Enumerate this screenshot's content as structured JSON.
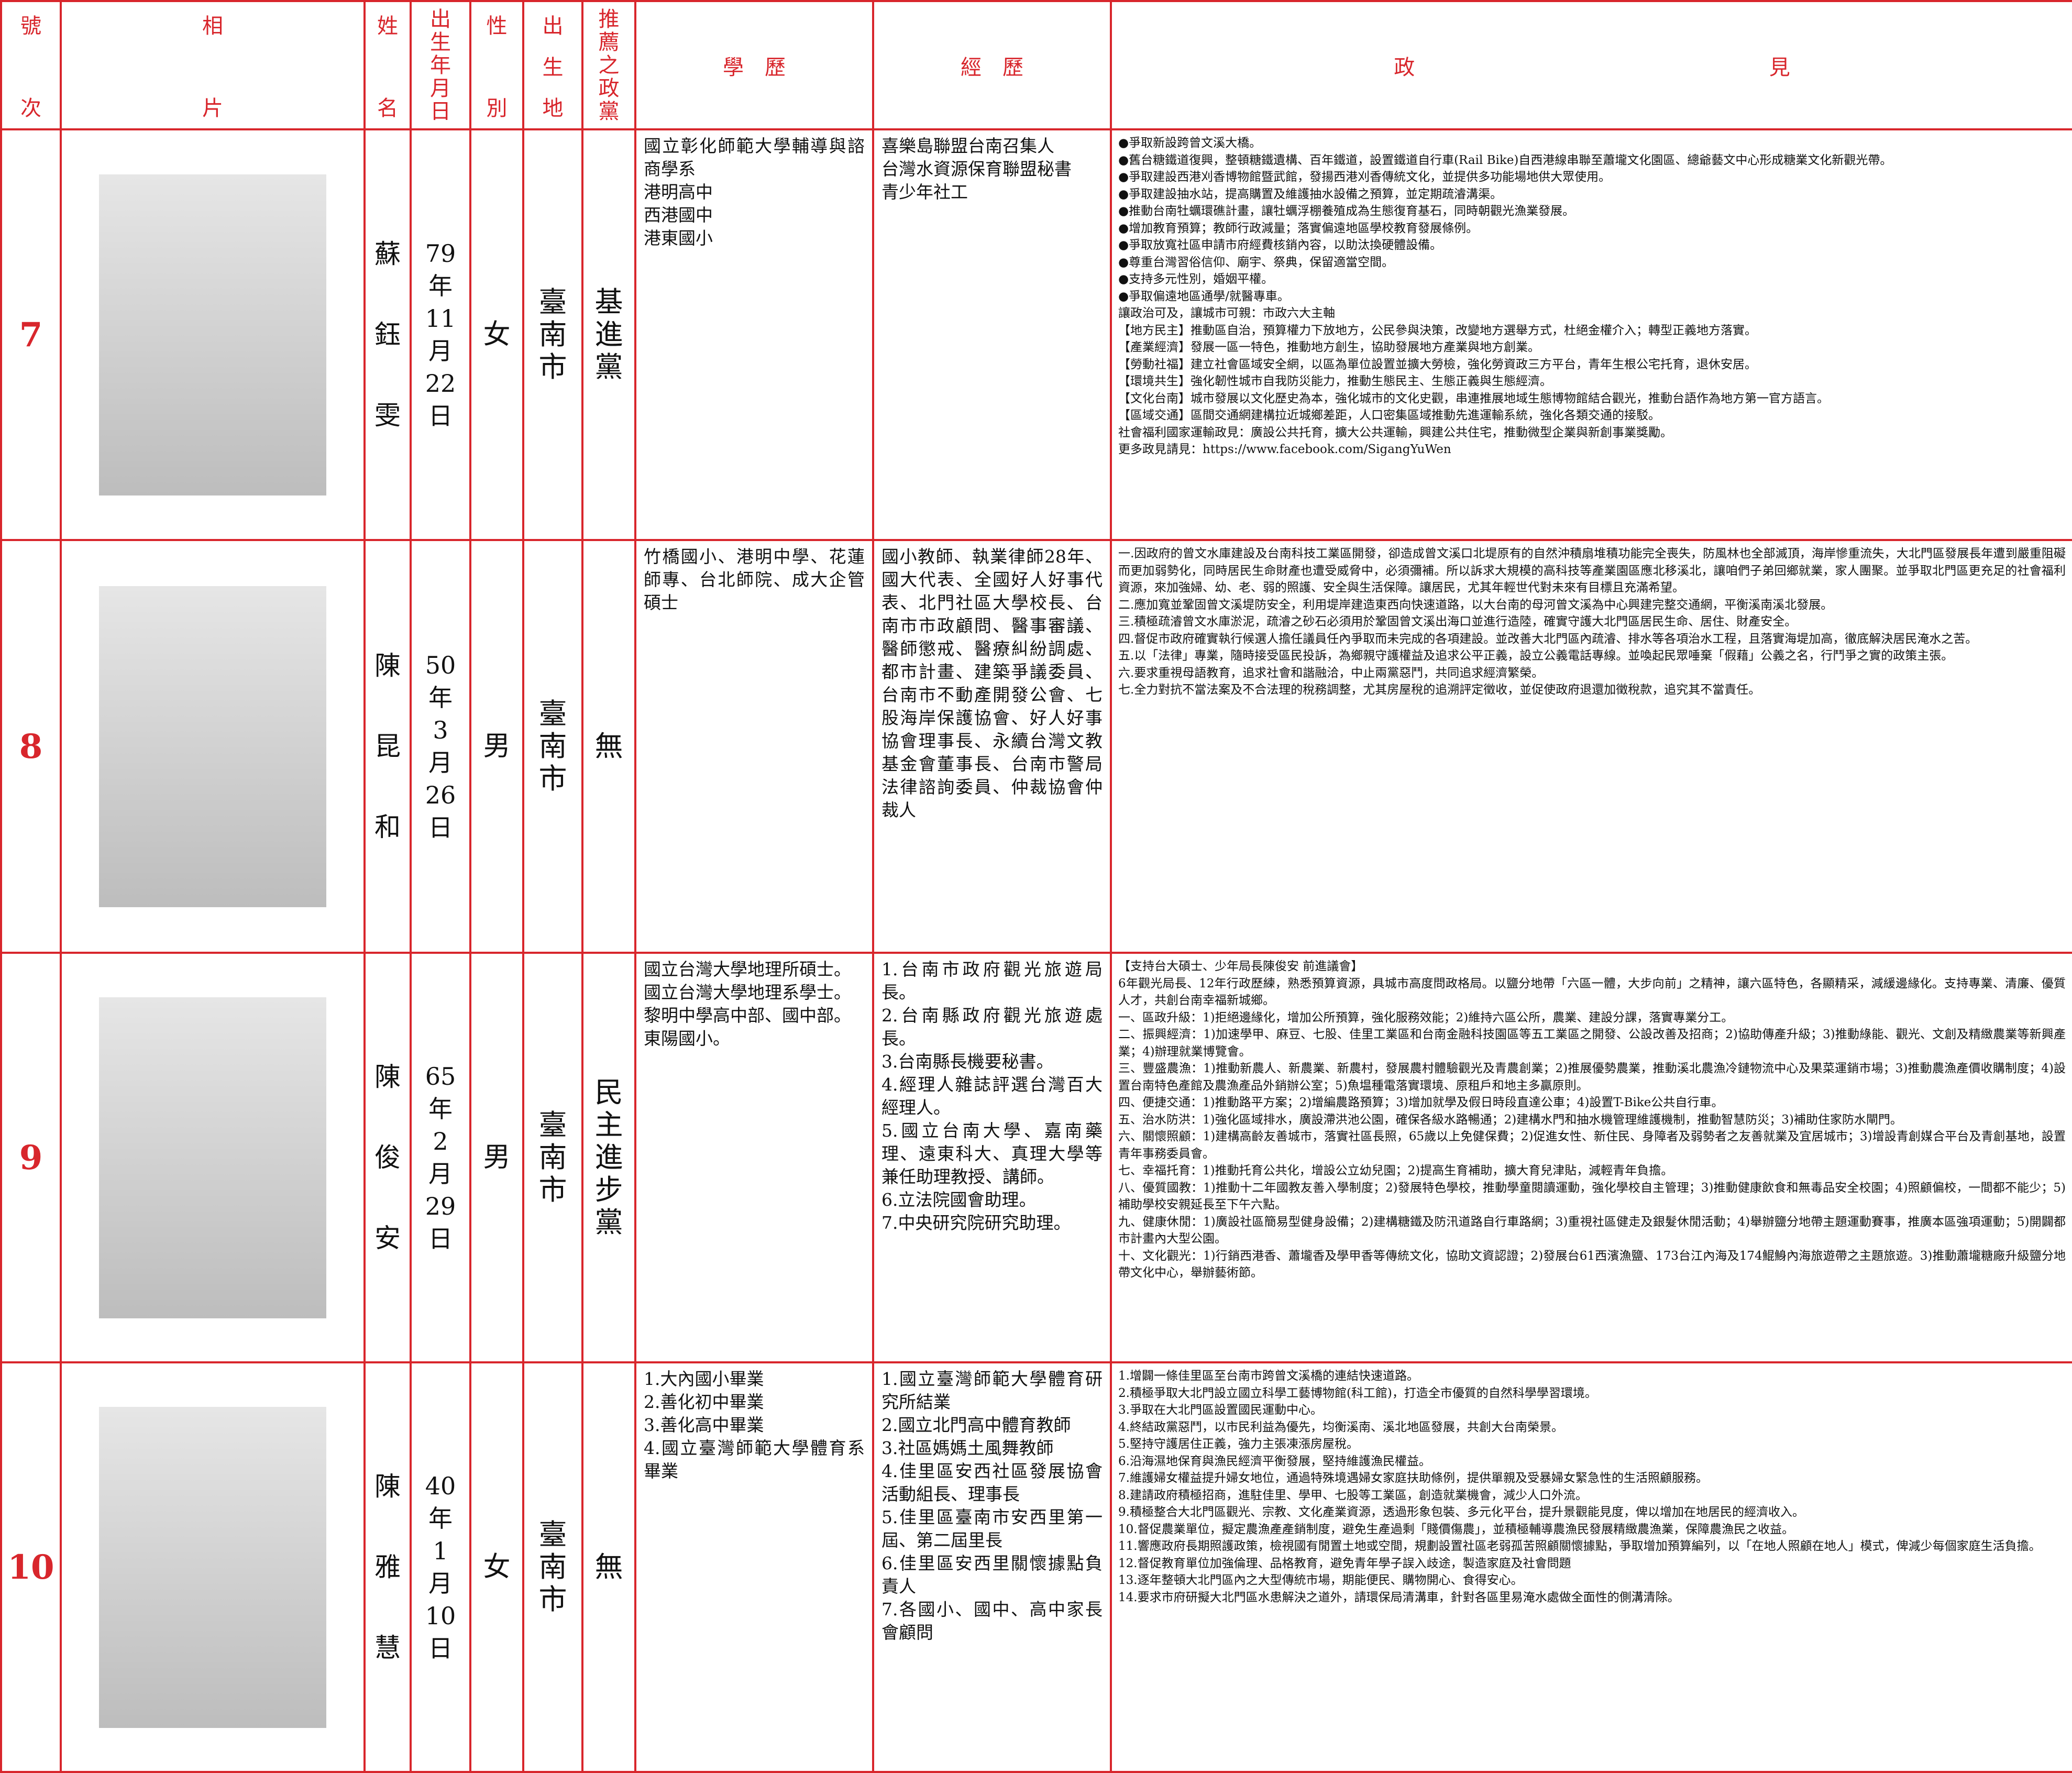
{
  "header": {
    "number": "號次",
    "photo": "相片",
    "name": "姓名",
    "birth": "出生年月日",
    "gender": "性別",
    "birthplace": "出生地",
    "party": "推薦之政黨",
    "education": "學歷",
    "experience": "經歷",
    "platform": "政見"
  },
  "candidates": [
    {
      "number": "7",
      "name": "蘇鈺雯",
      "birth": "79年11月22日",
      "gender": "女",
      "birthplace": "臺南市",
      "party": "基進黨",
      "education": [
        "國立彰化師範大學輔導與諮商學系",
        "港明高中",
        "西港國中",
        "港東國小"
      ],
      "experience": [
        "喜樂島聯盟台南召集人",
        "台灣水資源保育聯盟秘書",
        "青少年社工"
      ],
      "platform": [
        "●爭取新設跨曾文溪大橋。",
        "●舊台糖鐵道復興，整頓糖鐵遺構、百年鐵道，設置鐵道自行車(Rail Bike)自西港線串聯至蕭壠文化園區、總爺藝文中心形成糖業文化新觀光帶。",
        "●爭取建設西港刈香博物館暨武館，發揚西港刈香傳統文化，並提供多功能場地供大眾使用。",
        "●爭取建設抽水站，提高購置及維護抽水設備之預算，並定期疏濬溝渠。",
        "●推動台南牡蠣環礁計畫，讓牡蠣浮棚養殖成為生態復育基石，同時朝觀光漁業發展。",
        "●增加教育預算；教師行政減量；落實偏遠地區學校教育發展條例。",
        "●爭取放寬社區申請市府經費核銷內容，以助汰換硬體設備。",
        "●尊重台灣習俗信仰、廟宇、祭典，保留適當空間。",
        "●支持多元性別，婚姻平權。",
        "●爭取偏遠地區通學/就醫專車。",
        "讓政治可及，讓城市可親：市政六大主軸",
        "【地方民主】推動區自治，預算權力下放地方，公民參與決策，改變地方選舉方式，杜絕金權介入；轉型正義地方落實。",
        "【產業經濟】發展一區一特色，推動地方創生，協助發展地方產業與地方創業。",
        "【勞動社福】建立社會區域安全網，以區為單位設置並擴大勞檢，強化勞資政三方平台，青年生根公宅托育，退休安居。",
        "【環境共生】強化韌性城市自我防災能力，推動生態民主、生態正義與生態經濟。",
        "【文化台南】城市發展以文化歷史為本，強化城市的文化史觀，串連推展地域生態博物館結合觀光，推動台語作為地方第一官方語言。",
        "【區域交通】區間交通網建構拉近城鄉差距，人口密集區域推動先進運輸系統，強化各類交通的接駁。",
        "社會福利國家運輸政見：廣設公共托育，擴大公共運輸，興建公共住宅，推動微型企業與新創事業獎勵。",
        "更多政見請見：https://www.facebook.com/SigangYuWen"
      ]
    },
    {
      "number": "8",
      "name": "陳昆和",
      "birth": "50年3月26日",
      "gender": "男",
      "birthplace": "臺南市",
      "party": "無",
      "education": [
        "竹橋國小、港明中學、花蓮師專、台北師院、成大企管碩士"
      ],
      "experience": [
        "國小教師、執業律師28年、國大代表、全國好人好事代表、北門社區大學校長、台南市市政顧問、醫事審議、醫師懲戒、醫療糾紛調處、都市計畫、建築爭議委員、台南市不動產開發公會、七股海岸保護協會、好人好事協會理事長、永續台灣文教基金會董事長、台南市警局法律諮詢委員、仲裁協會仲裁人"
      ],
      "platform": [
        "一.因政府的曾文水庫建設及台南科技工業區開發，卻造成曾文溪口北堤原有的自然沖積扇堆積功能完全喪失，防風林也全部滅頂，海岸慘重流失，大北門區發展長年遭到嚴重阻礙而更加弱勢化，同時居民生命財產也遭受威脅中，必須彌補。所以訴求大規模的高科技等產業園區應北移溪北，讓咱們子弟回鄉就業，家人團聚。並爭取北門區更充足的社會福利資源，來加強婦、幼、老、弱的照護、安全與生活保障。讓居民，尤其年輕世代對未來有目標且充滿希望。",
        "二.應加寬並鞏固曾文溪堤防安全，利用堤岸建造東西向快速道路，以大台南的母河曾文溪為中心興建完整交通網，平衡溪南溪北發展。",
        "三.積極疏濬曾文水庫淤泥，疏濬之砂石必須用於鞏固曾文溪出海口並進行造陸，確實守護大北門區居民生命、居住、財產安全。",
        "四.督促市政府確實執行候選人擔任議員任內爭取而未完成的各項建設。並改善大北門區內疏濬、排水等各項治水工程，且落實海堤加高，徹底解決居民淹水之苦。",
        "五.以「法律」專業，隨時接受區民投訴，為鄉親守護權益及追求公平正義，設立公義電話專線。並喚起民眾唾棄「假藉」公義之名，行鬥爭之實的政策主張。",
        "六.要求重視母語教育，追求社會和諧融洽，中止兩黨惡鬥，共同追求經濟繁榮。",
        "七.全力對抗不當法案及不合法理的稅務調整，尤其房屋稅的追溯評定徵收，並促使政府退還加徵稅款，追究其不當責任。"
      ]
    },
    {
      "number": "9",
      "name": "陳俊安",
      "birth": "65年2月29日",
      "gender": "男",
      "birthplace": "臺南市",
      "party": "民主進步黨",
      "education": [
        "國立台灣大學地理所碩士。",
        "國立台灣大學地理系學士。",
        "黎明中學高中部、國中部。",
        "東陽國小。"
      ],
      "experience": [
        "1.台南市政府觀光旅遊局長。",
        "2.台南縣政府觀光旅遊處長。",
        "3.台南縣長機要秘書。",
        "4.經理人雜誌評選台灣百大經理人。",
        "5.國立台南大學、嘉南藥理、遠東科大、真理大學等兼任助理教授、講師。",
        "6.立法院國會助理。",
        "7.中央研究院研究助理。"
      ],
      "platform": [
        "【支持台大碩士、少年局長陳俊安 前進議會】",
        "6年觀光局長、12年行政歷練，熟悉預算資源，具城市高度問政格局。以鹽分地帶「六區一體，大步向前」之精神，讓六區特色，各顯精采，減緩邊緣化。支持專業、清廉、優質人才，共創台南幸福新城鄉。",
        "一、區政升級：1)拒絕邊緣化，增加公所預算，強化服務效能；2)維持六區公所，農業、建設分課，落實專業分工。",
        "二、振興經濟：1)加速學甲、麻豆、七股、佳里工業區和台南金融科技園區等五工業區之開發、公設改善及招商；2)協助傳產升級；3)推動綠能、觀光、文創及精緻農業等新興產業；4)辦理就業博覽會。",
        "三、豐盛農漁：1)推動新農人、新農業、新農村，發展農村體驗觀光及青農創業；2)推展優勢農業，推動溪北農漁冷鏈物流中心及果菜運銷市場；3)推動農漁產價收購制度；4)設置台南特色產館及農漁產品外銷辦公室；5)魚塭種電落實環境、原租戶和地主多贏原則。",
        "四、便捷交通：1)推動路平方案；2)增編農路預算；3)增加就學及假日時段直達公車；4)設置T-Bike公共自行車。",
        "五、治水防洪：1)強化區域排水，廣設滯洪池公園，確保各級水路暢通；2)建構水門和抽水機管理維護機制，推動智慧防災；3)補助住家防水閘門。",
        "六、關懷照顧：1)建構高齡友善城市，落實社區長照，65歲以上免健保費；2)促進女性、新住民、身障者及弱勢者之友善就業及宜居城市；3)增設青創媒合平台及青創基地，設置青年事務委員會。",
        "七、幸福托育：1)推動托育公共化，增設公立幼兒園；2)提高生育補助，擴大育兒津貼，減輕青年負擔。",
        "八、優質國教：1)推動十二年國教友善入學制度；2)發展特色學校，推動學童閱讀運動，強化學校自主管理；3)推動健康飲食和無毒品安全校園；4)照顧偏校，一間都不能少；5)補助學校安親延長至下午六點。",
        "九、健康休閒：1)廣設社區簡易型健身設備；2)建構糖鐵及防汛道路自行車路網；3)重視社區健走及銀髮休閒活動；4)舉辦鹽分地帶主題運動賽事，推廣本區強項運動；5)開闢都市計畫內大型公園。",
        "十、文化觀光：1)行銷西港香、蕭壠香及學甲香等傳統文化，協助文資認證；2)發展台61西濱漁鹽、173台江內海及174鯤鯓內海旅遊帶之主題旅遊。3)推動蕭壠糖廠升級鹽分地帶文化中心，舉辦藝術節。"
      ]
    },
    {
      "number": "10",
      "name": "陳雅慧",
      "birth": "40年1月10日",
      "gender": "女",
      "birthplace": "臺南市",
      "party": "無",
      "education": [
        "1.大內國小畢業",
        "2.善化初中畢業",
        "3.善化高中畢業",
        "4.國立臺灣師範大學體育系畢業"
      ],
      "experience": [
        "1.國立臺灣師範大學體育研究所結業",
        "2.國立北門高中體育教師",
        "3.社區媽媽土風舞教師",
        "4.佳里區安西社區發展協會活動組長、理事長",
        "5.佳里區臺南市安西里第一屆、第二屆里長",
        "6.佳里區安西里關懷據點負責人",
        "7.各國小、國中、高中家長會顧問"
      ],
      "platform": [
        "1.增闢一條佳里區至台南市跨曾文溪橋的連結快速道路。",
        "2.積極爭取大北門設立國立科學工藝博物館(科工館)，打造全市優質的自然科學學習環境。",
        "3.爭取在大北門區設置國民運動中心。",
        "4.終結政黨惡鬥，以市民利益為優先，均衡溪南、溪北地區發展，共創大台南榮景。",
        "5.堅持守護居住正義，強力主張凍漲房屋稅。",
        "6.沿海濕地保育與漁民經濟平衡發展，堅持維護漁民權益。",
        "7.維護婦女權益提升婦女地位，通過特殊境遇婦女家庭扶助條例，提供單親及受暴婦女緊急性的生活照顧服務。",
        "8.建請政府積極招商，進駐佳里、學甲、七股等工業區，創造就業機會，減少人口外流。",
        "9.積極整合大北門區觀光、宗教、文化產業資源，透過形象包裝、多元化平台，提升景觀能見度，俾以增加在地居民的經濟收入。",
        "10.督促農業單位，擬定農漁產產銷制度，避免生產過剩「賤價傷農」，並積極輔導農漁民發展精緻農漁業，保障農漁民之收益。",
        "11.響應政府長期照護政策，檢視國有閒置土地或空間，規劃設置社區老弱孤苦照顧關懷據點，爭取增加預算編列，以「在地人照顧在地人」模式，俾減少每個家庭生活負擔。",
        "12.督促教育單位加強倫理、品格教育，避免青年學子誤入歧途，製造家庭及社會問題",
        "13.逐年整頓大北門區內之大型傳統市場，期能便民、購物開心、食得安心。",
        "14.要求市府研擬大北門區水患解決之道外，請環保局清溝車，針對各區里易淹水處做全面性的側溝清除。"
      ]
    }
  ]
}
